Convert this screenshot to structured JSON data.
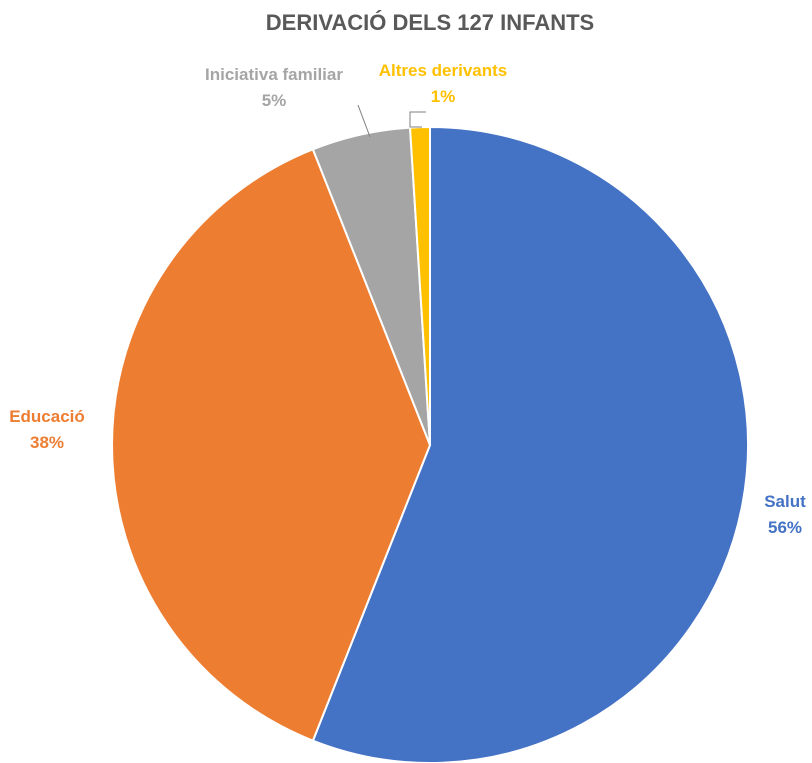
{
  "chart_data": {
    "type": "pie",
    "title": "DERIVACIÓ DELS 127 INFANTS",
    "series": [
      {
        "values": [
          56,
          38,
          5,
          1
        ],
        "categories": [
          "Salut",
          "Educació",
          "Iniciativa familiar",
          "Altres derivants"
        ]
      }
    ],
    "slices": [
      {
        "label": "Salut",
        "value": 56,
        "value_label": "56%",
        "color": "#4472C4"
      },
      {
        "label": "Educació",
        "value": 38,
        "value_label": "38%",
        "color": "#ED7D31"
      },
      {
        "label": "Iniciativa familiar",
        "value": 5,
        "value_label": "5%",
        "color": "#A5A5A5"
      },
      {
        "label": "Altres derivants",
        "value": 1,
        "value_label": "1%",
        "color": "#FFC000"
      }
    ],
    "legend": "none",
    "data_labels": "outside"
  }
}
